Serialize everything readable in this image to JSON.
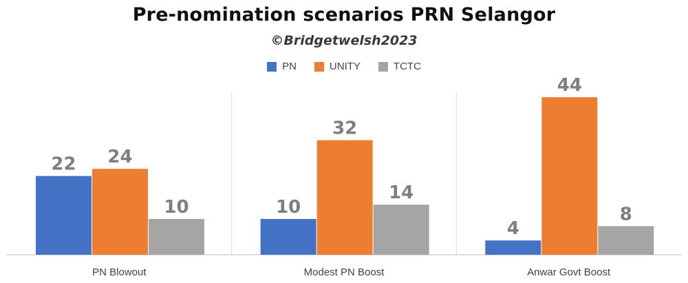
{
  "chart_data": {
    "type": "bar",
    "title": "Pre-nomination scenarios PRN Selangor",
    "subtitle": "©Bridgetwelsh2023",
    "categories": [
      "PN Blowout",
      "Modest PN Boost",
      "Anwar Govt Boost"
    ],
    "series": [
      {
        "name": "PN",
        "color": "#4472c4",
        "values": [
          22,
          10,
          4
        ]
      },
      {
        "name": "UNITY",
        "color": "#ed7d31",
        "values": [
          24,
          32,
          44
        ]
      },
      {
        "name": "TCTC",
        "color": "#a5a5a5",
        "values": [
          10,
          14,
          8
        ]
      }
    ],
    "ylim": [
      0,
      50
    ],
    "grid": false,
    "legend_position": "top"
  }
}
